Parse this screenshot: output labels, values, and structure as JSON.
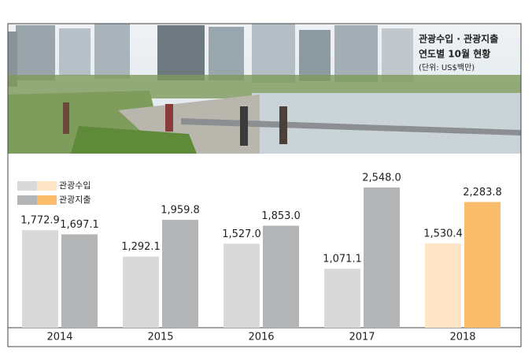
{
  "chart_data": {
    "type": "bar",
    "title": "관광수입 · 관광지출",
    "subtitle": "연도별 10월 현황",
    "unit_note": "(단위: US$백만)",
    "categories": [
      "2014",
      "2015",
      "2016",
      "2017",
      "2018"
    ],
    "series": [
      {
        "name": "관광수입",
        "colors": [
          "#d9d9da",
          "#d9d9da",
          "#d9d9da",
          "#d9d9da",
          "#fde5c6"
        ],
        "values": [
          1772.9,
          1292.1,
          1527.0,
          1071.1,
          1530.4
        ],
        "value_labels": [
          "1,772.9",
          "1,292.1",
          "1,527.0",
          "1,071.1",
          "1,530.4"
        ]
      },
      {
        "name": "관광지출",
        "colors": [
          "#b3b4b6",
          "#b3b4b6",
          "#b3b4b6",
          "#b3b4b6",
          "#fbbd6c"
        ],
        "values": [
          1697.1,
          1959.8,
          1853.0,
          2548.0,
          2283.8
        ],
        "value_labels": [
          "1,697.1",
          "1,959.8",
          "1,853.0",
          "2,548.0",
          "2,283.8"
        ]
      }
    ]
  }
}
